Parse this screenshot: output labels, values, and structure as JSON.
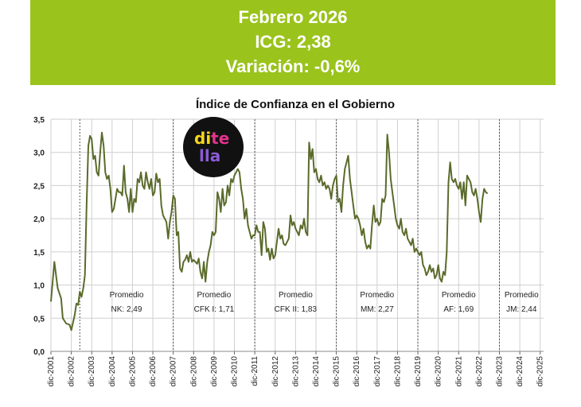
{
  "header": {
    "line1": "Febrero 2026",
    "line2": "ICG: 2,38",
    "line3": "Variación: -0,6%"
  },
  "logo": {
    "line1_a": "di",
    "line1_b": "te",
    "line2": "lla"
  },
  "colors": {
    "banner": "#9ac31c",
    "line": "#5a6b2b",
    "grid": "#cfcfcf"
  },
  "chart_data": {
    "type": "line",
    "title": "Índice de Confianza en el Gobierno",
    "xlabel": "",
    "ylabel": "",
    "ylim": [
      0,
      3.5
    ],
    "xlim": [
      "2001-12",
      "2026-02"
    ],
    "y_ticks": [
      "0,0",
      "0,5",
      "1,0",
      "1,5",
      "2,0",
      "2,5",
      "3,0",
      "3,5"
    ],
    "x_ticks": [
      "dic-2001",
      "dic-2002",
      "dic-2003",
      "dic-2004",
      "dic-2005",
      "dic-2006",
      "dic-2007",
      "dic-2008",
      "dic-2009",
      "dic-2010",
      "dic-2011",
      "dic-2012",
      "dic-2013",
      "dic-2014",
      "dic-2015",
      "dic-2016",
      "dic-2017",
      "dic-2018",
      "dic-2019",
      "dic-2020",
      "dic-2021",
      "dic-2022",
      "dic-2023",
      "dic-2024",
      "dic-2025"
    ],
    "grid": true,
    "periods": [
      {
        "start": "2003-05",
        "label": "Promedio",
        "sublabel": "NK: 2,49"
      },
      {
        "start": "2007-12",
        "label": "Promedio",
        "sublabel": "CFK I: 1,71"
      },
      {
        "start": "2011-12",
        "label": "Promedio",
        "sublabel": "CFK II: 1,83"
      },
      {
        "start": "2015-12",
        "label": "Promedio",
        "sublabel": "MM: 2,27"
      },
      {
        "start": "2019-12",
        "label": "Promedio",
        "sublabel": "AF: 1,69"
      },
      {
        "start": "2023-12",
        "label": "Promedio",
        "sublabel": "JM: 2,44"
      }
    ],
    "series": [
      {
        "points": [
          [
            "2001-12",
            0.75
          ],
          [
            "2002-02",
            1.35
          ],
          [
            "2002-04",
            0.95
          ],
          [
            "2002-06",
            0.8
          ],
          [
            "2002-07",
            0.5
          ],
          [
            "2002-09",
            0.42
          ],
          [
            "2002-11",
            0.4
          ],
          [
            "2002-12",
            0.32
          ],
          [
            "2003-02",
            0.55
          ],
          [
            "2003-03",
            0.72
          ],
          [
            "2003-04",
            0.7
          ],
          [
            "2003-05",
            0.9
          ],
          [
            "2003-06",
            0.82
          ],
          [
            "2003-07",
            0.95
          ],
          [
            "2003-08",
            1.15
          ],
          [
            "2003-09",
            2.2
          ],
          [
            "2003-10",
            3.1
          ],
          [
            "2003-11",
            3.25
          ],
          [
            "2003-12",
            3.2
          ],
          [
            "2004-01",
            2.9
          ],
          [
            "2004-02",
            2.95
          ],
          [
            "2004-03",
            2.7
          ],
          [
            "2004-04",
            2.65
          ],
          [
            "2004-05",
            3.0
          ],
          [
            "2004-06",
            3.3
          ],
          [
            "2004-07",
            3.1
          ],
          [
            "2004-08",
            2.7
          ],
          [
            "2004-09",
            2.6
          ],
          [
            "2004-10",
            2.65
          ],
          [
            "2004-11",
            2.45
          ],
          [
            "2004-12",
            2.1
          ],
          [
            "2005-01",
            2.15
          ],
          [
            "2005-02",
            2.3
          ],
          [
            "2005-03",
            2.45
          ],
          [
            "2005-04",
            2.4
          ],
          [
            "2005-05",
            2.4
          ],
          [
            "2005-06",
            2.35
          ],
          [
            "2005-07",
            2.8
          ],
          [
            "2005-08",
            2.4
          ],
          [
            "2005-09",
            2.3
          ],
          [
            "2005-10",
            2.1
          ],
          [
            "2005-11",
            2.45
          ],
          [
            "2005-12",
            2.1
          ],
          [
            "2006-01",
            2.3
          ],
          [
            "2006-02",
            2.25
          ],
          [
            "2006-03",
            2.6
          ],
          [
            "2006-04",
            2.55
          ],
          [
            "2006-05",
            2.7
          ],
          [
            "2006-06",
            2.5
          ],
          [
            "2006-07",
            2.45
          ],
          [
            "2006-08",
            2.7
          ],
          [
            "2006-09",
            2.55
          ],
          [
            "2006-10",
            2.45
          ],
          [
            "2006-11",
            2.6
          ],
          [
            "2006-12",
            2.35
          ],
          [
            "2007-01",
            2.4
          ],
          [
            "2007-02",
            2.68
          ],
          [
            "2007-03",
            2.55
          ],
          [
            "2007-04",
            2.6
          ],
          [
            "2007-05",
            2.2
          ],
          [
            "2007-06",
            2.05
          ],
          [
            "2007-07",
            2.0
          ],
          [
            "2007-08",
            1.95
          ],
          [
            "2007-09",
            1.7
          ],
          [
            "2007-10",
            1.95
          ],
          [
            "2007-11",
            2.1
          ],
          [
            "2007-12",
            2.35
          ],
          [
            "2008-01",
            2.3
          ],
          [
            "2008-02",
            1.75
          ],
          [
            "2008-03",
            1.8
          ],
          [
            "2008-04",
            1.25
          ],
          [
            "2008-05",
            1.2
          ],
          [
            "2008-06",
            1.35
          ],
          [
            "2008-07",
            1.38
          ],
          [
            "2008-08",
            1.45
          ],
          [
            "2008-09",
            1.35
          ],
          [
            "2008-10",
            1.5
          ],
          [
            "2008-11",
            1.35
          ],
          [
            "2008-12",
            1.38
          ],
          [
            "2009-01",
            1.35
          ],
          [
            "2009-02",
            1.32
          ],
          [
            "2009-03",
            1.4
          ],
          [
            "2009-04",
            1.2
          ],
          [
            "2009-05",
            1.1
          ],
          [
            "2009-06",
            1.35
          ],
          [
            "2009-07",
            1.05
          ],
          [
            "2009-08",
            1.35
          ],
          [
            "2009-09",
            1.5
          ],
          [
            "2009-10",
            1.6
          ],
          [
            "2009-11",
            1.8
          ],
          [
            "2009-12",
            1.75
          ],
          [
            "2010-01",
            1.8
          ],
          [
            "2010-02",
            2.4
          ],
          [
            "2010-03",
            2.3
          ],
          [
            "2010-04",
            2.1
          ],
          [
            "2010-05",
            2.45
          ],
          [
            "2010-06",
            2.2
          ],
          [
            "2010-07",
            2.25
          ],
          [
            "2010-08",
            2.5
          ],
          [
            "2010-09",
            2.35
          ],
          [
            "2010-10",
            2.6
          ],
          [
            "2010-11",
            2.55
          ],
          [
            "2010-12",
            2.65
          ],
          [
            "2011-01",
            2.7
          ],
          [
            "2011-02",
            2.75
          ],
          [
            "2011-03",
            2.7
          ],
          [
            "2011-04",
            2.45
          ],
          [
            "2011-05",
            2.3
          ],
          [
            "2011-06",
            2.0
          ],
          [
            "2011-07",
            2.15
          ],
          [
            "2011-08",
            1.9
          ],
          [
            "2011-09",
            1.8
          ],
          [
            "2011-10",
            1.7
          ],
          [
            "2011-11",
            1.75
          ],
          [
            "2011-12",
            1.75
          ],
          [
            "2012-01",
            1.9
          ],
          [
            "2012-02",
            1.8
          ],
          [
            "2012-03",
            1.8
          ],
          [
            "2012-04",
            1.45
          ],
          [
            "2012-05",
            1.95
          ],
          [
            "2012-06",
            1.85
          ],
          [
            "2012-07",
            1.5
          ],
          [
            "2012-08",
            1.55
          ],
          [
            "2012-09",
            1.38
          ],
          [
            "2012-10",
            1.55
          ],
          [
            "2012-11",
            1.4
          ],
          [
            "2012-12",
            1.45
          ],
          [
            "2013-01",
            1.65
          ],
          [
            "2013-02",
            1.85
          ],
          [
            "2013-03",
            1.7
          ],
          [
            "2013-04",
            1.75
          ],
          [
            "2013-05",
            1.62
          ],
          [
            "2013-06",
            1.6
          ],
          [
            "2013-07",
            1.65
          ],
          [
            "2013-08",
            1.7
          ],
          [
            "2013-09",
            2.05
          ],
          [
            "2013-10",
            1.9
          ],
          [
            "2013-11",
            1.95
          ],
          [
            "2013-12",
            1.85
          ],
          [
            "2014-01",
            1.8
          ],
          [
            "2014-02",
            1.75
          ],
          [
            "2014-03",
            1.9
          ],
          [
            "2014-04",
            1.85
          ],
          [
            "2014-05",
            2.0
          ],
          [
            "2014-06",
            1.8
          ],
          [
            "2014-07",
            1.75
          ],
          [
            "2014-08",
            3.15
          ],
          [
            "2014-09",
            2.9
          ],
          [
            "2014-10",
            3.05
          ],
          [
            "2014-11",
            2.7
          ],
          [
            "2014-12",
            2.75
          ],
          [
            "2015-01",
            2.6
          ],
          [
            "2015-02",
            2.55
          ],
          [
            "2015-03",
            2.65
          ],
          [
            "2015-04",
            2.5
          ],
          [
            "2015-05",
            2.55
          ],
          [
            "2015-06",
            2.45
          ],
          [
            "2015-07",
            2.5
          ],
          [
            "2015-08",
            2.45
          ],
          [
            "2015-09",
            2.3
          ],
          [
            "2015-10",
            2.5
          ],
          [
            "2015-11",
            2.6
          ],
          [
            "2015-12",
            2.65
          ],
          [
            "2016-01",
            2.25
          ],
          [
            "2016-02",
            2.3
          ],
          [
            "2016-03",
            2.1
          ],
          [
            "2016-04",
            2.5
          ],
          [
            "2016-05",
            2.75
          ],
          [
            "2016-06",
            2.85
          ],
          [
            "2016-07",
            2.95
          ],
          [
            "2016-08",
            2.6
          ],
          [
            "2016-09",
            2.4
          ],
          [
            "2016-10",
            2.2
          ],
          [
            "2016-11",
            2.0
          ],
          [
            "2016-12",
            2.05
          ],
          [
            "2017-01",
            2.0
          ],
          [
            "2017-02",
            1.9
          ],
          [
            "2017-03",
            1.75
          ],
          [
            "2017-04",
            1.85
          ],
          [
            "2017-05",
            1.65
          ],
          [
            "2017-06",
            1.55
          ],
          [
            "2017-07",
            1.6
          ],
          [
            "2017-08",
            1.55
          ],
          [
            "2017-09",
            1.9
          ],
          [
            "2017-10",
            2.2
          ],
          [
            "2017-11",
            1.95
          ],
          [
            "2017-12",
            2.0
          ],
          [
            "2018-01",
            1.9
          ],
          [
            "2018-02",
            1.95
          ],
          [
            "2018-03",
            2.3
          ],
          [
            "2018-04",
            2.25
          ],
          [
            "2018-05",
            2.35
          ],
          [
            "2018-06",
            3.27
          ],
          [
            "2018-07",
            3.0
          ],
          [
            "2018-08",
            2.6
          ],
          [
            "2018-09",
            2.4
          ],
          [
            "2018-10",
            2.2
          ],
          [
            "2018-11",
            2.0
          ],
          [
            "2018-12",
            1.9
          ],
          [
            "2019-01",
            1.85
          ],
          [
            "2019-02",
            2.0
          ],
          [
            "2019-03",
            1.8
          ],
          [
            "2019-04",
            1.75
          ],
          [
            "2019-05",
            1.85
          ],
          [
            "2019-06",
            1.7
          ],
          [
            "2019-07",
            1.65
          ],
          [
            "2019-08",
            1.6
          ],
          [
            "2019-09",
            1.7
          ],
          [
            "2019-10",
            1.5
          ],
          [
            "2019-11",
            1.55
          ],
          [
            "2019-12",
            1.5
          ],
          [
            "2020-01",
            1.45
          ],
          [
            "2020-02",
            1.5
          ],
          [
            "2020-03",
            1.3
          ],
          [
            "2020-04",
            1.25
          ],
          [
            "2020-05",
            1.15
          ],
          [
            "2020-06",
            1.2
          ],
          [
            "2020-07",
            1.3
          ],
          [
            "2020-08",
            1.2
          ],
          [
            "2020-09",
            1.25
          ],
          [
            "2020-10",
            1.1
          ],
          [
            "2020-11",
            1.15
          ],
          [
            "2020-12",
            1.3
          ],
          [
            "2021-01",
            1.1
          ],
          [
            "2021-02",
            1.05
          ],
          [
            "2021-03",
            1.2
          ],
          [
            "2021-04",
            1.15
          ],
          [
            "2021-05",
            1.5
          ],
          [
            "2021-06",
            2.55
          ],
          [
            "2021-07",
            2.85
          ],
          [
            "2021-08",
            2.6
          ],
          [
            "2021-09",
            2.55
          ],
          [
            "2021-10",
            2.6
          ],
          [
            "2021-11",
            2.5
          ],
          [
            "2021-12",
            2.45
          ],
          [
            "2022-01",
            2.55
          ],
          [
            "2022-02",
            2.3
          ],
          [
            "2022-03",
            2.55
          ],
          [
            "2022-04",
            2.2
          ],
          [
            "2022-05",
            2.65
          ],
          [
            "2022-06",
            2.6
          ],
          [
            "2022-07",
            2.55
          ],
          [
            "2022-08",
            2.4
          ],
          [
            "2022-09",
            2.35
          ],
          [
            "2022-10",
            2.45
          ],
          [
            "2022-11",
            2.3
          ],
          [
            "2022-12",
            2.1
          ],
          [
            "2023-01",
            1.95
          ],
          [
            "2023-02",
            2.3
          ],
          [
            "2023-03",
            2.45
          ],
          [
            "2023-04",
            2.4
          ],
          [
            "2023-05",
            2.38
          ]
        ]
      }
    ]
  }
}
